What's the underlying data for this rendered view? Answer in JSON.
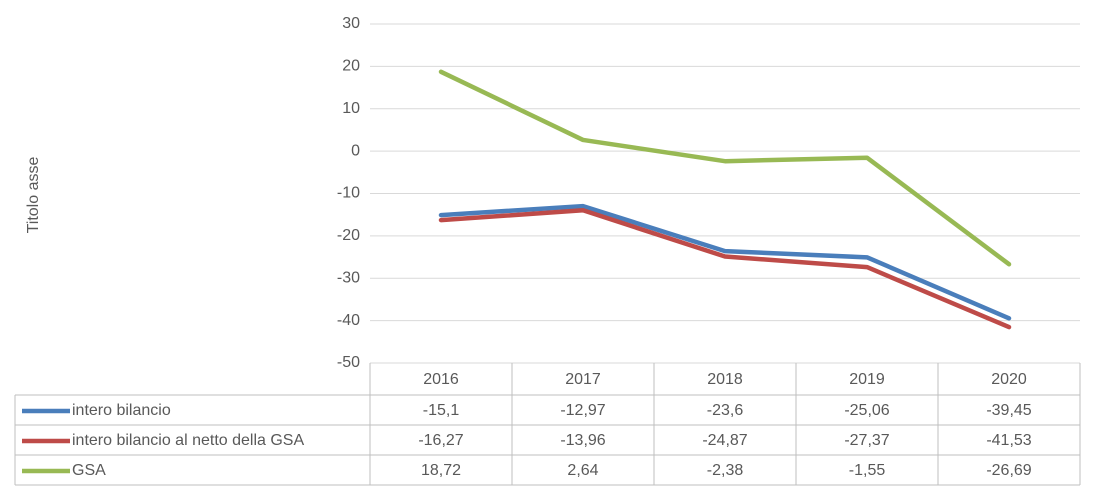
{
  "chart_data": {
    "type": "line",
    "y_axis_label": "Titolo asse",
    "categories": [
      "2016",
      "2017",
      "2018",
      "2019",
      "2020"
    ],
    "series": [
      {
        "name": "intero bilancio",
        "color": "#4a7ebb",
        "values": [
          -15.1,
          -12.97,
          -23.6,
          -25.06,
          -39.45
        ],
        "value_labels": [
          "-15,1",
          "-12,97",
          "-23,6",
          "-25,06",
          "-39,45"
        ]
      },
      {
        "name": "intero bilancio al netto della GSA",
        "color": "#be4b48",
        "values": [
          -16.27,
          -13.96,
          -24.87,
          -27.37,
          -41.53
        ],
        "value_labels": [
          "-16,27",
          "-13,96",
          "-24,87",
          "-27,37",
          "-41,53"
        ]
      },
      {
        "name": "GSA",
        "color": "#98b954",
        "values": [
          18.72,
          2.64,
          -2.38,
          -1.55,
          -26.69
        ],
        "value_labels": [
          "18,72",
          "2,64",
          "-2,38",
          "-1,55",
          "-26,69"
        ]
      }
    ],
    "ylim": [
      -50,
      30
    ],
    "yticks": [
      -50,
      -40,
      -30,
      -20,
      -10,
      0,
      10,
      20,
      30
    ],
    "grid": true
  }
}
